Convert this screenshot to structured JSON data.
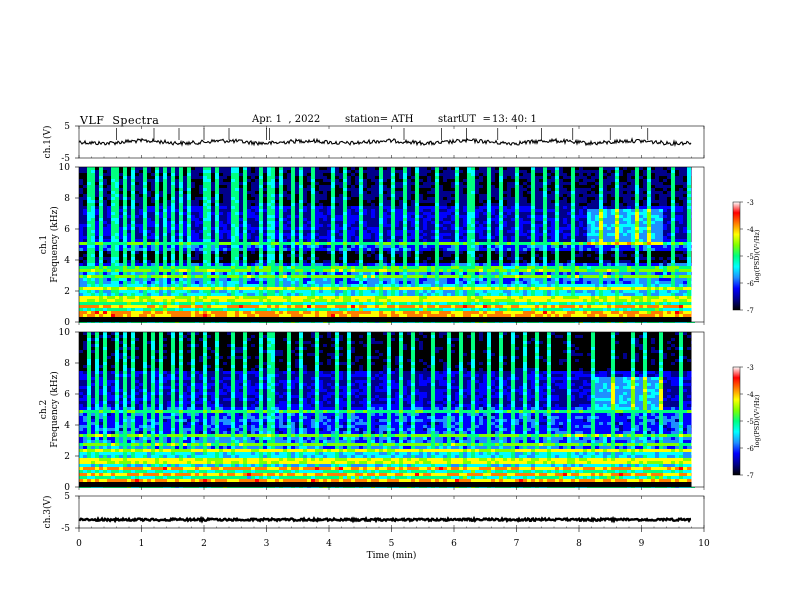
{
  "header": {
    "title": "VLF  Spectra",
    "date": "Apr. 1  , 2022",
    "station": "station= ATH",
    "start_label": "start",
    "start_ut_label": "UT  =",
    "start_ut": "13: 40: 1"
  },
  "colors": {
    "background": "#ffffff",
    "axes": "#000000",
    "colormap": [
      "#000000",
      "#00008b",
      "#0000ff",
      "#1e90ff",
      "#00ffff",
      "#00ff7f",
      "#7fff00",
      "#ffff00",
      "#ff7f00",
      "#ff0000",
      "#ffffff"
    ]
  },
  "chart_data": [
    {
      "type": "line",
      "panel": "ch1-waveform",
      "ylabel": "ch.1(V)",
      "ylim": [
        -5,
        5
      ],
      "yticks": [
        "5",
        "-5"
      ],
      "xlim": [
        0,
        10
      ],
      "series": [
        {
          "trace_level": 0.0,
          "spike_times_min": [
            0.6,
            1.2,
            1.6,
            2.0,
            2.4,
            3.0,
            3.05,
            5.2,
            5.8,
            6.2,
            6.7,
            7.4,
            7.9,
            8.5,
            9.1
          ]
        }
      ]
    },
    {
      "type": "heatmap",
      "panel": "ch1-spectrogram",
      "ylabel": "ch.1\nFrequency (kHz)",
      "ylim": [
        0,
        10
      ],
      "yticks": [
        "0",
        "2",
        "4",
        "6",
        "8",
        "10"
      ],
      "xlim": [
        0,
        9.8
      ],
      "colorbar": {
        "label": "log(PSD)(V²/Hz)",
        "range": [
          -7,
          -3
        ],
        "ticks": [
          "-3",
          "-4",
          "-5",
          "-6",
          "-7"
        ]
      },
      "features": {
        "sferic_times_min": [
          0.1,
          0.2,
          0.35,
          0.5,
          0.6,
          0.7,
          0.85,
          1.0,
          1.05,
          1.2,
          1.35,
          1.5,
          1.6,
          1.75,
          2.0,
          2.05,
          2.2,
          2.4,
          2.5,
          2.65,
          2.9,
          3.0,
          3.05,
          3.2,
          3.4,
          3.5,
          3.7,
          4.0,
          4.2,
          4.5,
          4.8,
          5.0,
          5.2,
          5.4,
          5.7,
          6.0,
          6.2,
          6.3,
          6.5,
          6.7,
          7.0,
          7.2,
          7.4,
          7.6,
          7.9,
          8.3,
          8.6,
          8.9,
          9.1,
          9.5,
          9.7
        ],
        "bright_bands_khz": [
          0.5,
          1.0,
          1.5,
          2.2,
          3.0,
          3.4,
          5.0
        ],
        "dark_band_khz": [
          3.9,
          4.6
        ],
        "enhancement_region": {
          "time_min": [
            8.1,
            9.3
          ],
          "freq_khz": [
            5.0,
            7.3
          ]
        }
      }
    },
    {
      "type": "heatmap",
      "panel": "ch2-spectrogram",
      "ylabel": "ch.2\nFrequency (kHz)",
      "ylim": [
        0,
        10
      ],
      "yticks": [
        "0",
        "2",
        "4",
        "6",
        "8",
        "10"
      ],
      "xlim": [
        0,
        9.8
      ],
      "colorbar": {
        "label": "log(PSD)(V²/Hz)",
        "range": [
          -7,
          -3
        ],
        "ticks": [
          "-3",
          "-4",
          "-5",
          "-6",
          "-7"
        ]
      },
      "features": {
        "sferic_times_min": [
          0.1,
          0.25,
          0.4,
          0.55,
          0.7,
          0.85,
          1.0,
          1.15,
          1.3,
          1.5,
          1.6,
          1.8,
          2.0,
          2.2,
          2.4,
          2.6,
          2.85,
          3.0,
          3.1,
          3.3,
          3.5,
          3.75,
          4.1,
          4.3,
          4.6,
          4.9,
          5.1,
          5.3,
          5.6,
          5.9,
          6.1,
          6.3,
          6.5,
          6.7,
          6.9,
          7.1,
          7.3,
          7.5,
          7.8,
          8.2,
          8.5,
          8.8,
          9.0,
          9.3,
          9.6
        ],
        "bright_bands_khz": [
          0.4,
          0.8,
          1.2,
          1.7,
          2.3,
          2.7,
          3.3,
          4.8
        ],
        "enhancement_region": {
          "time_min": [
            8.2,
            9.3
          ],
          "freq_khz": [
            5.0,
            7.0
          ]
        }
      }
    },
    {
      "type": "line",
      "panel": "ch3-waveform",
      "ylabel": "ch.3(V)",
      "ylim": [
        -5,
        5
      ],
      "yticks": [
        "5",
        "-5"
      ],
      "xlim": [
        0,
        10
      ],
      "xlabel": "Time  (min)",
      "xticks": [
        "0",
        "1",
        "2",
        "3",
        "4",
        "5",
        "6",
        "7",
        "8",
        "9",
        "10"
      ],
      "series": [
        {
          "trace_level": -2.4
        }
      ]
    }
  ]
}
